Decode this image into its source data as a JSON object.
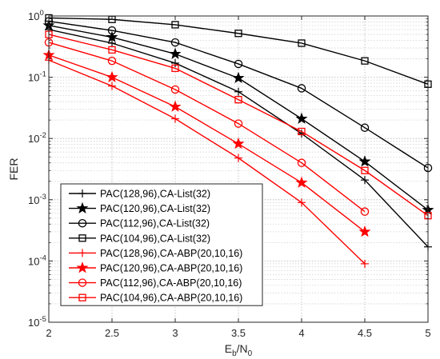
{
  "chart_data": {
    "type": "line",
    "title": "",
    "xlabel": {
      "main": "E",
      "sub1": "b",
      "mid": "/N",
      "sub2": "0"
    },
    "ylabel": "FER",
    "xlim": [
      2,
      5
    ],
    "ylim": [
      1e-05,
      1
    ],
    "yscale": "log",
    "grid": true,
    "legend_position": "lower-left",
    "x_ticks": [
      2,
      2.5,
      3,
      3.5,
      4,
      4.5,
      5
    ],
    "x_tick_labels": [
      "2",
      "2.5",
      "3",
      "3.5",
      "4",
      "4.5",
      "5"
    ],
    "y_ticks": [
      {
        "value": 1,
        "base": "10",
        "exp": "0"
      },
      {
        "value": 0.1,
        "base": "10",
        "exp": "-1"
      },
      {
        "value": 0.01,
        "base": "10",
        "exp": "-2"
      },
      {
        "value": 0.001,
        "base": "10",
        "exp": "-3"
      },
      {
        "value": 0.0001,
        "base": "10",
        "exp": "-4"
      },
      {
        "value": 1e-05,
        "base": "10",
        "exp": "-5"
      }
    ],
    "series": [
      {
        "name": "PAC(128,96),CA-List(32)",
        "color": "#000000",
        "marker": "plus",
        "x": [
          2,
          2.5,
          3,
          3.5,
          4,
          4.5,
          5
        ],
        "y": [
          0.6,
          0.36,
          0.17,
          0.058,
          0.012,
          0.0021,
          0.00017
        ]
      },
      {
        "name": "PAC(120,96),CA-List(32)",
        "color": "#000000",
        "marker": "star",
        "x": [
          2,
          2.5,
          3,
          3.5,
          4,
          4.5,
          5
        ],
        "y": [
          0.7,
          0.45,
          0.24,
          0.097,
          0.021,
          0.0042,
          0.00068
        ]
      },
      {
        "name": "PAC(112,96),CA-List(32)",
        "color": "#000000",
        "marker": "circle",
        "x": [
          2,
          2.5,
          3,
          3.5,
          4,
          4.5,
          5
        ],
        "y": [
          0.82,
          0.58,
          0.37,
          0.165,
          0.066,
          0.015,
          0.0033
        ]
      },
      {
        "name": "PAC(104,96),CA-List(32)",
        "color": "#000000",
        "marker": "square",
        "x": [
          2,
          2.5,
          3,
          3.5,
          4,
          4.5,
          5
        ],
        "y": [
          0.93,
          0.88,
          0.72,
          0.52,
          0.36,
          0.185,
          0.077
        ]
      },
      {
        "name": "PAC(128,96),CA-ABP(20,10,16)",
        "color": "#ff0000",
        "marker": "plus",
        "x": [
          2,
          2.5,
          3,
          3.5,
          4,
          4.5
        ],
        "y": [
          0.19,
          0.072,
          0.021,
          0.0048,
          0.0009,
          9e-05
        ]
      },
      {
        "name": "PAC(120,96),CA-ABP(20,10,16)",
        "color": "#ff0000",
        "marker": "star",
        "x": [
          2,
          2.5,
          3,
          3.5,
          4,
          4.5
        ],
        "y": [
          0.23,
          0.1,
          0.033,
          0.0082,
          0.0019,
          0.0003
        ]
      },
      {
        "name": "PAC(112,96),CA-ABP(20,10,16)",
        "color": "#ff0000",
        "marker": "circle",
        "x": [
          2,
          2.5,
          3,
          3.5,
          4,
          4.5
        ],
        "y": [
          0.37,
          0.185,
          0.063,
          0.0175,
          0.004,
          0.00064
        ]
      },
      {
        "name": "PAC(104,96),CA-ABP(20,10,16)",
        "color": "#ff0000",
        "marker": "square",
        "x": [
          2,
          2.5,
          3,
          3.5,
          4,
          4.5,
          5
        ],
        "y": [
          0.5,
          0.28,
          0.14,
          0.043,
          0.013,
          0.003,
          0.00055
        ]
      }
    ]
  }
}
